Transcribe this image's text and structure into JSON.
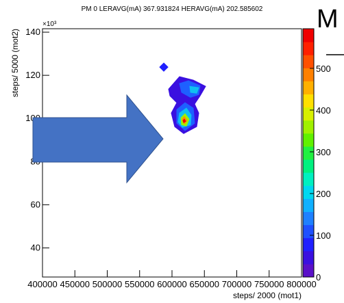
{
  "chart_data": {
    "type": "contour",
    "title": "PM 0 LERAVG(mA) 367.931824 HERAVG(mA) 202.585602",
    "x_label": "steps/ 2000 (mot1)",
    "y_label": "steps/ 5000 (mot2)",
    "y_exponent": "×10³",
    "xlim": [
      400000,
      800000
    ],
    "xticks": [
      400000,
      450000,
      500000,
      550000,
      600000,
      650000,
      700000,
      750000,
      800000
    ],
    "ylim": [
      26.5,
      141.6
    ],
    "yticks": [
      40,
      60,
      80,
      100,
      120,
      140
    ],
    "zlim": [
      0,
      595
    ],
    "zticks": [
      0,
      100,
      200,
      300,
      400,
      500
    ],
    "palette": [
      "#5a10c8",
      "#3a10e0",
      "#2020ff",
      "#1e50ff",
      "#1e80ff",
      "#10b0ff",
      "#00d8f0",
      "#00f0c0",
      "#00f080",
      "#20f040",
      "#60f000",
      "#a0f000",
      "#d8f000",
      "#ffe000",
      "#ffb000",
      "#ff8000",
      "#ff5000",
      "#ff2000",
      "#f00000"
    ],
    "contours": [
      {
        "level": 60,
        "color": "#2020ff",
        "points": [
          [
            587300,
            125.7
          ],
          [
            593700,
            123.8
          ],
          [
            587300,
            121.9
          ],
          [
            581000,
            123.8
          ]
        ]
      },
      {
        "level": 30,
        "color": "#3a10e0",
        "points": [
          [
            594700,
            113.6
          ],
          [
            611600,
            119.4
          ],
          [
            632800,
            117.8
          ],
          [
            651900,
            114.9
          ],
          [
            643400,
            110.5
          ],
          [
            634900,
            106.7
          ],
          [
            641300,
            102.5
          ],
          [
            638100,
            96.2
          ],
          [
            618000,
            93.0
          ],
          [
            604200,
            96.2
          ],
          [
            598900,
            102.5
          ],
          [
            607400,
            107.3
          ],
          [
            596800,
            110.5
          ]
        ]
      },
      {
        "level": 100,
        "color": "#1e60ff",
        "points": [
          [
            611600,
            116.2
          ],
          [
            625400,
            117.5
          ],
          [
            643400,
            115.2
          ],
          [
            641300,
            111.1
          ],
          [
            628600,
            109.8
          ],
          [
            614800,
            112.1
          ]
        ]
      },
      {
        "level": 100,
        "color": "#1e60ff",
        "points": [
          [
            607400,
            104.1
          ],
          [
            620100,
            107.3
          ],
          [
            632800,
            104.8
          ],
          [
            634900,
            97.8
          ],
          [
            620100,
            94.4
          ],
          [
            607400,
            97.8
          ]
        ]
      },
      {
        "level": 200,
        "color": "#10c0f0",
        "points": [
          [
            627500,
            114.9
          ],
          [
            641300,
            114.3
          ],
          [
            638100,
            111.7
          ],
          [
            628600,
            112.1
          ]
        ]
      },
      {
        "level": 200,
        "color": "#10c0f0",
        "points": [
          [
            611600,
            102.5
          ],
          [
            622200,
            104.8
          ],
          [
            629600,
            101.6
          ],
          [
            628600,
            97.1
          ],
          [
            615900,
            95.9
          ],
          [
            609500,
            98.4
          ]
        ]
      },
      {
        "level": 350,
        "color": "#a0f000",
        "points": [
          [
            613800,
            100.3
          ],
          [
            620100,
            102.2
          ],
          [
            626500,
            99.7
          ],
          [
            622200,
            96.5
          ],
          [
            614800,
            97.1
          ]
        ]
      },
      {
        "level": 450,
        "color": "#ff9000",
        "points": [
          [
            615900,
            99.7
          ],
          [
            619000,
            100.9
          ],
          [
            623300,
            99.0
          ],
          [
            619000,
            97.5
          ]
        ]
      },
      {
        "level": 550,
        "color": "#f00000",
        "points": [
          [
            616900,
            99.0
          ],
          [
            619000,
            99.7
          ],
          [
            621200,
            98.7
          ],
          [
            618000,
            98.1
          ]
        ]
      }
    ],
    "slide_fragment": "M"
  }
}
